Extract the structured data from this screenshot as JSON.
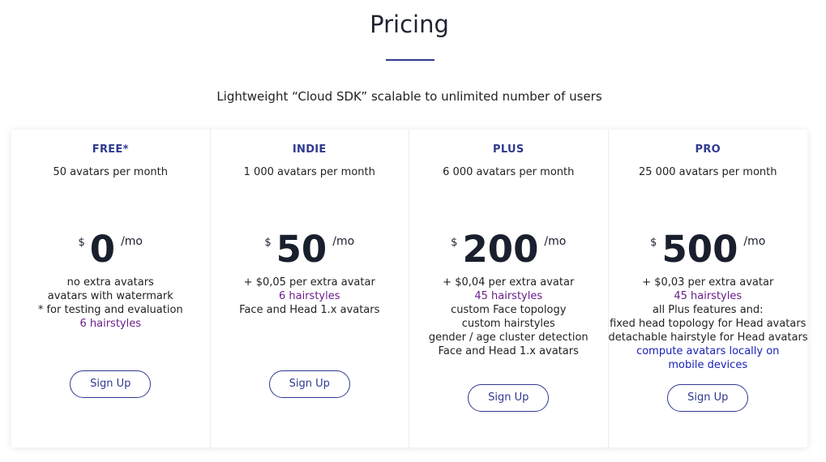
{
  "header": {
    "title": "Pricing",
    "subtitle": "Lightweight “Cloud SDK” scalable to unlimited number of users",
    "accent_color": "#2f3a8f"
  },
  "plans": [
    {
      "name": "FREE*",
      "quota": "50 avatars per month",
      "currency": "$",
      "amount": "0",
      "period": "/mo",
      "features": [
        {
          "text": "no extra avatars",
          "style": "normal"
        },
        {
          "text": "avatars with watermark",
          "style": "normal"
        },
        {
          "text": "* for testing and evaluation",
          "style": "normal"
        },
        {
          "text": "6 hairstyles",
          "style": "highlight"
        }
      ],
      "button_label": "Sign Up"
    },
    {
      "name": "INDIE",
      "quota": "1 000 avatars per month",
      "currency": "$",
      "amount": "50",
      "period": "/mo",
      "features": [
        {
          "text": "+ $0,05 per extra avatar",
          "style": "normal"
        },
        {
          "text": "6 hairstyles",
          "style": "highlight"
        },
        {
          "text": "Face and Head 1.x avatars",
          "style": "normal"
        }
      ],
      "button_label": "Sign Up"
    },
    {
      "name": "PLUS",
      "quota": "6 000 avatars per month",
      "currency": "$",
      "amount": "200",
      "period": "/mo",
      "features": [
        {
          "text": "+ $0,04 per extra avatar",
          "style": "normal"
        },
        {
          "text": "45 hairstyles",
          "style": "highlight"
        },
        {
          "text": "custom Face topology",
          "style": "normal"
        },
        {
          "text": "custom hairstyles",
          "style": "normal"
        },
        {
          "text": "gender / age cluster detection",
          "style": "normal"
        },
        {
          "text": "Face and Head 1.x avatars",
          "style": "normal"
        }
      ],
      "button_label": "Sign Up"
    },
    {
      "name": "PRO",
      "quota": "25 000 avatars per month",
      "currency": "$",
      "amount": "500",
      "period": "/mo",
      "features": [
        {
          "text": "+ $0,03 per extra avatar",
          "style": "normal"
        },
        {
          "text": "45 hairstyles",
          "style": "highlight"
        },
        {
          "text": "all Plus features and:",
          "style": "normal"
        },
        {
          "text": "fixed head topology for Head avatars",
          "style": "normal"
        },
        {
          "text": "detachable hairstyle for Head avatars",
          "style": "normal"
        },
        {
          "text": "compute avatars locally on mobile devices",
          "style": "link"
        }
      ],
      "button_label": "Sign Up"
    }
  ]
}
